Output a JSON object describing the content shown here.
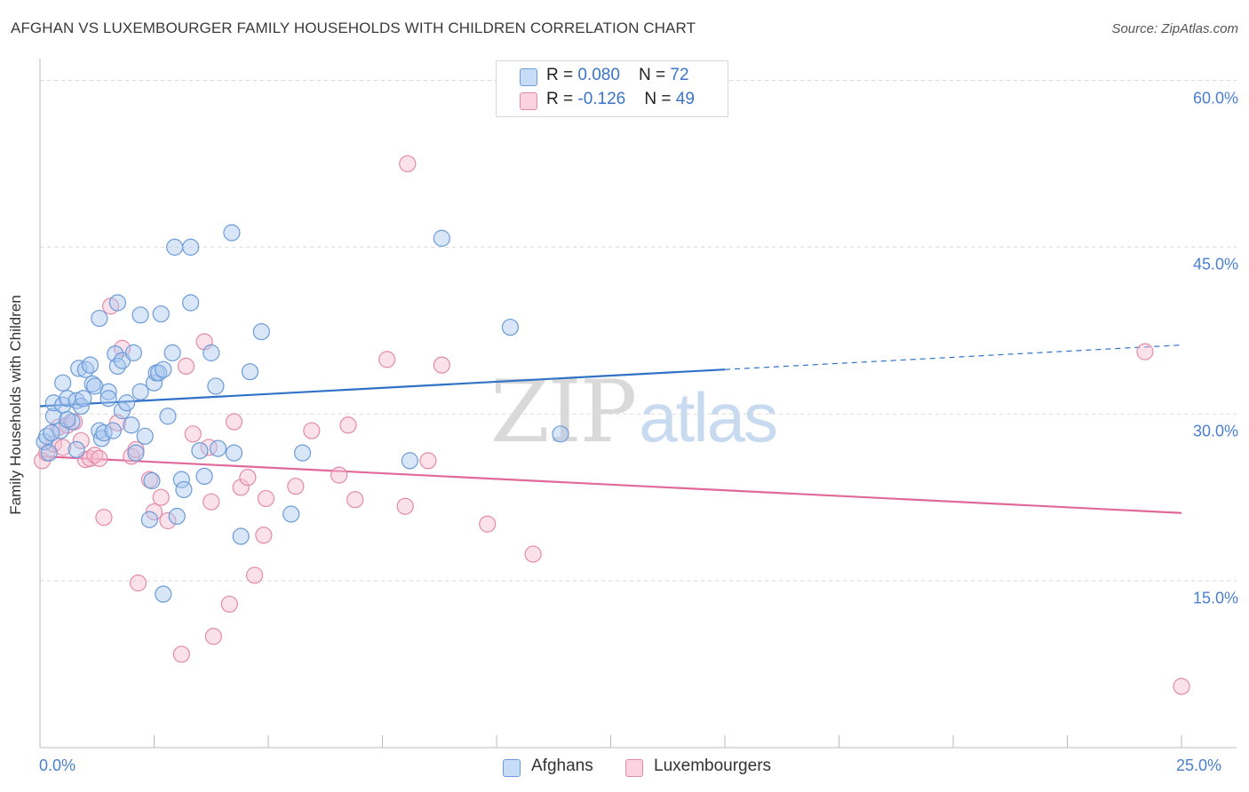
{
  "header": {
    "title": "AFGHAN VS LUXEMBOURGER FAMILY HOUSEHOLDS WITH CHILDREN CORRELATION CHART",
    "source": "Source: ZipAtlas.com"
  },
  "legend": {
    "rows": [
      {
        "r_label": "R = ",
        "r_value": "0.080",
        "n_label": "N = ",
        "n_value": "72"
      },
      {
        "r_label": "R = ",
        "r_value": "-0.126",
        "n_label": "N = ",
        "n_value": "49"
      }
    ]
  },
  "bottom_legend": [
    "Afghans",
    "Luxembourgers"
  ],
  "watermark": {
    "zip": "ZIP",
    "atlas": "atlas"
  },
  "colors": {
    "afghans_fill": "#a9c8f0",
    "afghans_stroke": "#6c9bd8",
    "afghans_line": "#2f72c6",
    "lux_fill": "#f7bfd1",
    "lux_stroke": "#e48aa8",
    "lux_line": "#e0699a",
    "grid": "#d9d9d9",
    "tick_text": "#4a7fd0"
  },
  "chart_data": {
    "type": "scatter",
    "title": "AFGHAN VS LUXEMBOURGER FAMILY HOUSEHOLDS WITH CHILDREN CORRELATION CHART",
    "xlabel": "",
    "ylabel": "Family Households with Children",
    "xlim": [
      0,
      25
    ],
    "ylim": [
      0,
      61
    ],
    "x_tick_labels": [
      "0.0%",
      "25.0%"
    ],
    "y_ticks": [
      15,
      30,
      45,
      60
    ],
    "y_tick_labels": [
      "15.0%",
      "30.0%",
      "45.0%",
      "60.0%"
    ],
    "grid": true,
    "legend_position": "top-center",
    "series": [
      {
        "name": "Afghans",
        "r": 0.08,
        "n": 72,
        "trend": {
          "x0": 0,
          "y0": 30.7,
          "x1": 15,
          "y1": 34.0,
          "dashed_to_x": 25,
          "dashed_to_y": 36.2
        },
        "points": [
          [
            0.1,
            27.5
          ],
          [
            0.15,
            28.0
          ],
          [
            0.2,
            26.5
          ],
          [
            0.3,
            29.8
          ],
          [
            0.3,
            31.0
          ],
          [
            0.45,
            28.5
          ],
          [
            0.5,
            32.8
          ],
          [
            0.5,
            30.8
          ],
          [
            0.6,
            31.4
          ],
          [
            0.7,
            29.3
          ],
          [
            0.8,
            31.2
          ],
          [
            0.85,
            34.1
          ],
          [
            0.9,
            30.7
          ],
          [
            0.95,
            31.4
          ],
          [
            1.0,
            34.0
          ],
          [
            1.1,
            34.4
          ],
          [
            1.15,
            32.7
          ],
          [
            1.2,
            32.5
          ],
          [
            1.3,
            28.5
          ],
          [
            1.35,
            27.8
          ],
          [
            1.4,
            28.3
          ],
          [
            1.5,
            32.0
          ],
          [
            1.5,
            31.4
          ],
          [
            1.6,
            28.5
          ],
          [
            1.65,
            35.4
          ],
          [
            1.7,
            34.3
          ],
          [
            1.8,
            34.8
          ],
          [
            1.8,
            30.3
          ],
          [
            1.9,
            31.0
          ],
          [
            2.0,
            29.0
          ],
          [
            2.05,
            35.5
          ],
          [
            2.1,
            26.5
          ],
          [
            2.2,
            32.0
          ],
          [
            2.3,
            28.0
          ],
          [
            2.4,
            20.5
          ],
          [
            2.45,
            24.0
          ],
          [
            2.5,
            32.8
          ],
          [
            2.55,
            33.7
          ],
          [
            2.6,
            33.7
          ],
          [
            2.7,
            34.0
          ],
          [
            2.8,
            29.8
          ],
          [
            2.9,
            35.5
          ],
          [
            2.95,
            45.0
          ],
          [
            3.0,
            20.8
          ],
          [
            3.1,
            24.1
          ],
          [
            3.15,
            23.2
          ],
          [
            3.3,
            45.0
          ],
          [
            3.3,
            40.0
          ],
          [
            3.5,
            26.7
          ],
          [
            3.6,
            24.4
          ],
          [
            3.75,
            35.5
          ],
          [
            3.85,
            32.5
          ],
          [
            3.9,
            26.9
          ],
          [
            4.2,
            46.3
          ],
          [
            4.25,
            26.5
          ],
          [
            4.4,
            19.0
          ],
          [
            4.6,
            33.8
          ],
          [
            4.85,
            37.4
          ],
          [
            5.5,
            21.0
          ],
          [
            5.75,
            26.5
          ],
          [
            8.1,
            25.8
          ],
          [
            8.8,
            45.8
          ],
          [
            10.3,
            37.8
          ],
          [
            11.4,
            28.2
          ],
          [
            1.3,
            38.6
          ],
          [
            1.7,
            40.0
          ],
          [
            2.2,
            38.9
          ],
          [
            2.65,
            39.0
          ],
          [
            2.7,
            13.8
          ],
          [
            0.25,
            28.3
          ],
          [
            0.6,
            29.5
          ],
          [
            0.8,
            26.8
          ]
        ]
      },
      {
        "name": "Luxembourgers",
        "r": -0.126,
        "n": 49,
        "trend": {
          "x0": 0,
          "y0": 26.2,
          "x1": 25,
          "y1": 21.1
        },
        "points": [
          [
            0.05,
            25.8
          ],
          [
            0.15,
            26.5
          ],
          [
            0.3,
            27.3
          ],
          [
            0.4,
            28.8
          ],
          [
            0.5,
            27.0
          ],
          [
            0.6,
            29.0
          ],
          [
            0.75,
            29.3
          ],
          [
            0.9,
            27.6
          ],
          [
            1.0,
            25.9
          ],
          [
            1.1,
            26.0
          ],
          [
            1.2,
            26.3
          ],
          [
            1.3,
            26.0
          ],
          [
            1.4,
            20.7
          ],
          [
            1.55,
            39.7
          ],
          [
            1.7,
            29.2
          ],
          [
            1.8,
            35.9
          ],
          [
            2.0,
            26.2
          ],
          [
            2.1,
            26.8
          ],
          [
            2.15,
            14.8
          ],
          [
            2.4,
            24.1
          ],
          [
            2.5,
            21.2
          ],
          [
            2.65,
            22.5
          ],
          [
            2.8,
            20.4
          ],
          [
            3.1,
            8.4
          ],
          [
            3.2,
            34.3
          ],
          [
            3.35,
            28.2
          ],
          [
            3.6,
            36.5
          ],
          [
            3.7,
            27.0
          ],
          [
            3.75,
            22.1
          ],
          [
            3.8,
            10.0
          ],
          [
            4.15,
            12.9
          ],
          [
            4.25,
            29.3
          ],
          [
            4.4,
            23.4
          ],
          [
            4.55,
            24.3
          ],
          [
            4.7,
            15.5
          ],
          [
            4.9,
            19.1
          ],
          [
            4.95,
            22.4
          ],
          [
            5.6,
            23.5
          ],
          [
            5.95,
            28.5
          ],
          [
            6.55,
            24.5
          ],
          [
            6.75,
            29.0
          ],
          [
            6.9,
            22.3
          ],
          [
            7.6,
            34.9
          ],
          [
            8.0,
            21.7
          ],
          [
            8.05,
            52.5
          ],
          [
            8.5,
            25.8
          ],
          [
            8.8,
            34.4
          ],
          [
            9.8,
            20.1
          ],
          [
            10.8,
            17.4
          ]
        ],
        "extra_points": [
          [
            24.2,
            35.6
          ],
          [
            25.0,
            5.5
          ]
        ]
      }
    ]
  }
}
